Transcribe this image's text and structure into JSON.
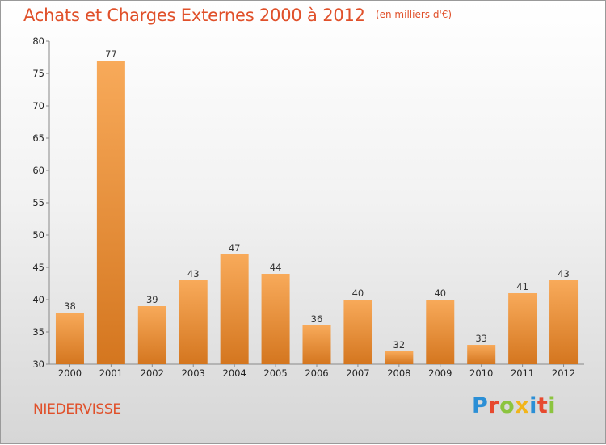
{
  "header": {
    "title": "Achats et Charges Externes 2000 à 2012",
    "subtitle": "(en milliers d'€)"
  },
  "footer": {
    "commune": "NIEDERVISSE",
    "brand": {
      "text": "Proxiti",
      "letters": [
        {
          "char": "P",
          "color": "#2b8fd6"
        },
        {
          "char": "r",
          "color": "#e7492f"
        },
        {
          "char": "o",
          "color": "#8cc43f"
        },
        {
          "char": "x",
          "color": "#f2b51a"
        },
        {
          "char": "i",
          "color": "#2b8fd6"
        },
        {
          "char": "t",
          "color": "#e7492f"
        },
        {
          "char": "i",
          "color": "#8cc43f"
        }
      ]
    }
  },
  "colors": {
    "bar_light": "#f8aa5a",
    "bar_dark": "#d4761f",
    "title": "#e0502a"
  },
  "chart_data": {
    "type": "bar",
    "title": "Achats et Charges Externes 2000 à 2012",
    "subtitle": "(en milliers d'€)",
    "xlabel": "",
    "ylabel": "",
    "categories": [
      "2000",
      "2001",
      "2002",
      "2003",
      "2004",
      "2005",
      "2006",
      "2007",
      "2008",
      "2009",
      "2010",
      "2011",
      "2012"
    ],
    "values": [
      38,
      77,
      39,
      43,
      47,
      44,
      36,
      40,
      32,
      40,
      33,
      41,
      43
    ],
    "ylim": [
      30,
      80
    ],
    "yticks": [
      30,
      35,
      40,
      45,
      50,
      55,
      60,
      65,
      70,
      75,
      80
    ],
    "grid": false,
    "legend": "none"
  }
}
